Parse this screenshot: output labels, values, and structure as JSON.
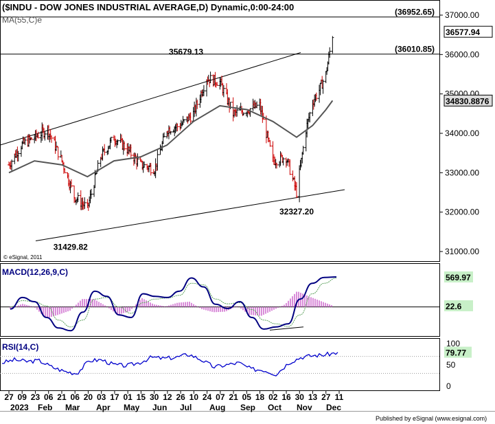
{
  "header": {
    "title": "($INDU - DOW JONES INDUSTRIAL AVERAGE,D) Dynamic,0:00-24:00",
    "ma_label": "MA(55,C)e",
    "copyright": "© eSignal, 2011",
    "publisher": "Published by eSignal (www.esignal.com)"
  },
  "colors": {
    "price_bar": "#000000",
    "down_bar": "#cc0000",
    "ma_line": "#555555",
    "macd_line": "#000080",
    "signal_line": "#5aa05a",
    "hist": "#cc66cc",
    "rsi_line": "#0000cc",
    "badge_green": "#c8f0c8",
    "badge_gray": "#dddddd"
  },
  "chart_data": [
    {
      "type": "line",
      "panel": "price",
      "y_axis_ticks": [
        "37000.00",
        "36000.00",
        "35000.00",
        "34000.00",
        "33000.00",
        "32000.00",
        "31000.00"
      ],
      "ylim": [
        30700,
        37300
      ],
      "grid": false,
      "series": [
        {
          "name": "$INDU",
          "x": [
            "2022-12-27",
            "2023-01-09",
            "2023-01-23",
            "2023-02-06",
            "2023-02-21",
            "2023-03-06",
            "2023-03-20",
            "2023-04-03",
            "2023-04-17",
            "2023-05-01",
            "2023-05-15",
            "2023-05-30",
            "2023-06-12",
            "2023-06-26",
            "2023-07-10",
            "2023-07-24",
            "2023-08-07",
            "2023-08-21",
            "2023-09-05",
            "2023-09-18",
            "2023-10-02",
            "2023-10-16",
            "2023-10-27",
            "2023-11-06",
            "2023-11-13",
            "2023-11-20",
            "2023-11-27",
            "2023-12-04"
          ],
          "values": [
            33200,
            33700,
            33900,
            34100,
            33300,
            32400,
            32100,
            33400,
            33900,
            33600,
            33200,
            33100,
            34100,
            34200,
            34500,
            35400,
            35300,
            34500,
            34600,
            34700,
            33300,
            33400,
            32500,
            34100,
            34800,
            35100,
            35500,
            36500
          ]
        },
        {
          "name": "MA(55,C)e",
          "x": [
            "2022-12-27",
            "2023-01-23",
            "2023-02-21",
            "2023-03-20",
            "2023-04-17",
            "2023-05-15",
            "2023-06-12",
            "2023-07-10",
            "2023-08-07",
            "2023-09-05",
            "2023-10-02",
            "2023-10-27",
            "2023-11-13",
            "2023-11-27",
            "2023-12-04"
          ],
          "values": [
            33000,
            33300,
            33200,
            32900,
            33300,
            33400,
            33700,
            34300,
            34700,
            34600,
            34300,
            33900,
            34200,
            34600,
            34830
          ]
        }
      ],
      "annotations": [
        {
          "text": "35679.13",
          "x": "2023-07-24",
          "y": 35679.13
        },
        {
          "text": "31429.82",
          "x": "2023-03-13",
          "y": 31429.82
        },
        {
          "text": "32327.20",
          "x": "2023-10-27",
          "y": 32327.2
        }
      ],
      "horizontal_lines": [
        {
          "label": "(36952.65)",
          "y": 36952.65
        },
        {
          "label": "(36010.85)",
          "y": 36010.85
        }
      ],
      "badges": [
        {
          "label": "36577.94",
          "y": 36577.94
        },
        {
          "label": "34830.8876",
          "y": 34830.8876
        }
      ]
    },
    {
      "type": "line",
      "panel": "macd",
      "title": "MACD(12,26,9,C)",
      "ylim": [
        -500,
        700
      ],
      "series": [
        {
          "name": "MACD",
          "values": [
            -40,
            180,
            100,
            -200,
            -400,
            -450,
            -100,
            300,
            200,
            -150,
            -200,
            250,
            200,
            180,
            300,
            550,
            380,
            50,
            -30,
            100,
            -200,
            -420,
            -380,
            -320,
            150,
            450,
            560,
            570
          ]
        },
        {
          "name": "Signal",
          "values": [
            0,
            120,
            100,
            20,
            -250,
            -380,
            -250,
            150,
            180,
            0,
            -120,
            80,
            150,
            170,
            220,
            450,
            420,
            150,
            60,
            80,
            -50,
            -250,
            -320,
            -370,
            -150,
            250,
            450,
            547
          ]
        },
        {
          "name": "Hist",
          "values": [
            -40,
            60,
            0,
            -220,
            -150,
            -70,
            150,
            150,
            20,
            -150,
            -80,
            170,
            50,
            10,
            80,
            100,
            -40,
            -100,
            -90,
            20,
            -150,
            -170,
            -60,
            50,
            300,
            200,
            110,
            23
          ]
        }
      ],
      "badges": [
        {
          "label": "569.97",
          "value": 569.97
        },
        {
          "label": "22.6",
          "value": 22.6
        }
      ]
    },
    {
      "type": "line",
      "panel": "rsi",
      "title": "RSI(14,C)",
      "ylim": [
        0,
        100
      ],
      "y_axis_ticks": [
        "100",
        "50",
        "0"
      ],
      "series": [
        {
          "name": "RSI",
          "values": [
            55,
            62,
            58,
            60,
            45,
            35,
            30,
            60,
            62,
            50,
            48,
            55,
            68,
            65,
            68,
            75,
            62,
            45,
            50,
            55,
            40,
            38,
            28,
            55,
            68,
            72,
            74,
            79.77
          ]
        }
      ],
      "badges": [
        {
          "label": "79.77",
          "value": 79.77
        }
      ]
    }
  ],
  "x_axis": {
    "day_ticks": [
      "27",
      "09",
      "23",
      "06",
      "21",
      "06",
      "20",
      "03",
      "17",
      "01",
      "15",
      "30",
      "12",
      "26",
      "10",
      "24",
      "07",
      "21",
      "05",
      "18",
      "02",
      "16",
      "30",
      "13",
      "27",
      "11"
    ],
    "month_ticks": [
      "2023",
      "Feb",
      "Mar",
      "Apr",
      "May",
      "Jun",
      "Jul",
      "Aug",
      "Sep",
      "Oct",
      "Nov",
      "Dec"
    ]
  }
}
